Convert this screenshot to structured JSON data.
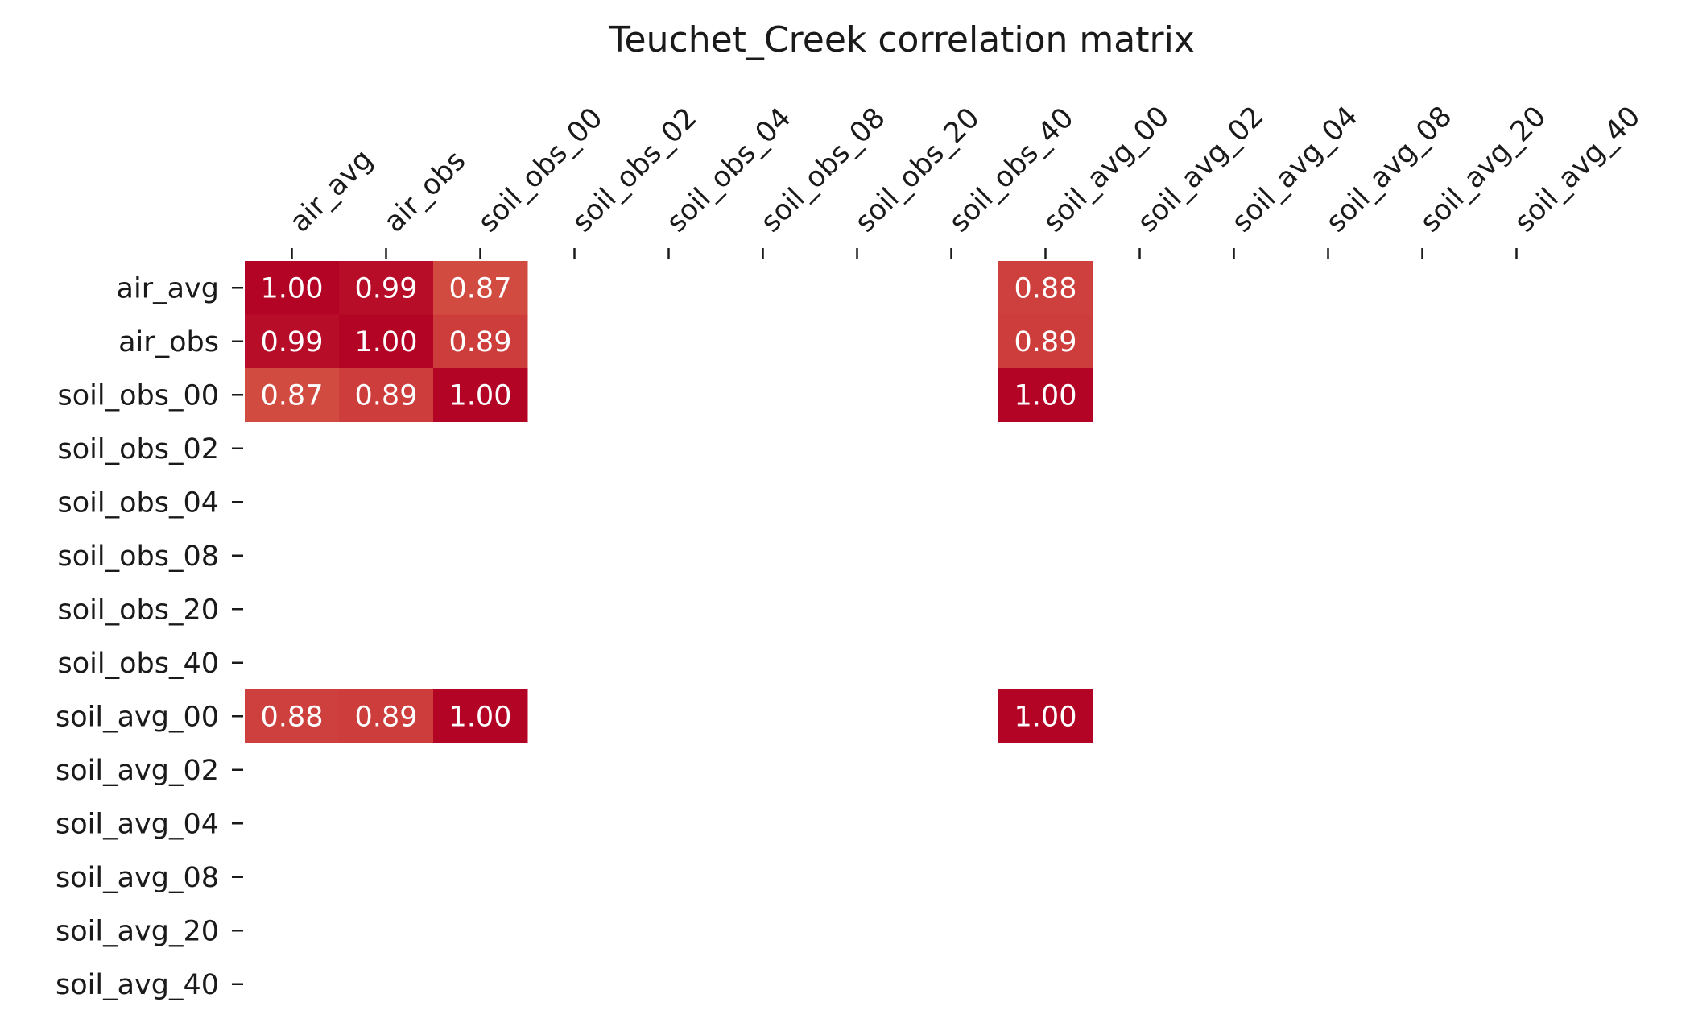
{
  "chart_data": {
    "type": "heatmap",
    "title": "Teuchet_Creek correlation matrix",
    "x_labels": [
      "air_avg",
      "air_obs",
      "soil_obs_00",
      "soil_obs_02",
      "soil_obs_04",
      "soil_obs_08",
      "soil_obs_20",
      "soil_obs_40",
      "soil_avg_00",
      "soil_avg_02",
      "soil_avg_04",
      "soil_avg_08",
      "soil_avg_20",
      "soil_avg_40"
    ],
    "y_labels": [
      "air_avg",
      "air_obs",
      "soil_obs_00",
      "soil_obs_02",
      "soil_obs_04",
      "soil_obs_08",
      "soil_obs_20",
      "soil_obs_40",
      "soil_avg_00",
      "soil_avg_02",
      "soil_avg_04",
      "soil_avg_08",
      "soil_avg_20",
      "soil_avg_40"
    ],
    "values": [
      [
        1.0,
        0.99,
        0.87,
        null,
        null,
        null,
        null,
        null,
        0.88,
        null,
        null,
        null,
        null,
        null
      ],
      [
        0.99,
        1.0,
        0.89,
        null,
        null,
        null,
        null,
        null,
        0.89,
        null,
        null,
        null,
        null,
        null
      ],
      [
        0.87,
        0.89,
        1.0,
        null,
        null,
        null,
        null,
        null,
        1.0,
        null,
        null,
        null,
        null,
        null
      ],
      [
        null,
        null,
        null,
        null,
        null,
        null,
        null,
        null,
        null,
        null,
        null,
        null,
        null,
        null
      ],
      [
        null,
        null,
        null,
        null,
        null,
        null,
        null,
        null,
        null,
        null,
        null,
        null,
        null,
        null
      ],
      [
        null,
        null,
        null,
        null,
        null,
        null,
        null,
        null,
        null,
        null,
        null,
        null,
        null,
        null
      ],
      [
        null,
        null,
        null,
        null,
        null,
        null,
        null,
        null,
        null,
        null,
        null,
        null,
        null,
        null
      ],
      [
        null,
        null,
        null,
        null,
        null,
        null,
        null,
        null,
        null,
        null,
        null,
        null,
        null,
        null
      ],
      [
        0.88,
        0.89,
        1.0,
        null,
        null,
        null,
        null,
        null,
        1.0,
        null,
        null,
        null,
        null,
        null
      ],
      [
        null,
        null,
        null,
        null,
        null,
        null,
        null,
        null,
        null,
        null,
        null,
        null,
        null,
        null
      ],
      [
        null,
        null,
        null,
        null,
        null,
        null,
        null,
        null,
        null,
        null,
        null,
        null,
        null,
        null
      ],
      [
        null,
        null,
        null,
        null,
        null,
        null,
        null,
        null,
        null,
        null,
        null,
        null,
        null,
        null
      ],
      [
        null,
        null,
        null,
        null,
        null,
        null,
        null,
        null,
        null,
        null,
        null,
        null,
        null,
        null
      ],
      [
        null,
        null,
        null,
        null,
        null,
        null,
        null,
        null,
        null,
        null,
        null,
        null,
        null,
        null
      ]
    ],
    "value_format": "0.00",
    "colormap": "coolwarm",
    "color_range": [
      -1,
      1
    ],
    "colors": {
      "1.00": "#b40426",
      "0.99": "#b70d28",
      "0.89": "#cc3d3b",
      "0.88": "#ce403d",
      "0.87": "#d24b40"
    },
    "x_axis_position": "top",
    "x_tick_rotation": 45,
    "grid": false,
    "legend": "none"
  }
}
